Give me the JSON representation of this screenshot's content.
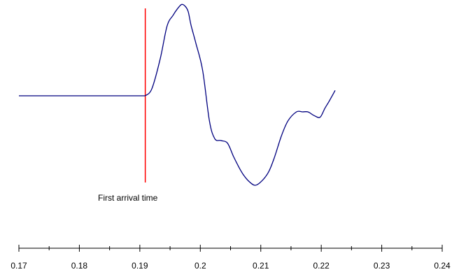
{
  "chart_data": {
    "type": "line",
    "title": "",
    "xlabel": "",
    "ylabel": "",
    "xlim": [
      0.17,
      0.24
    ],
    "x_ticks": [
      {
        "value": 0.17,
        "label": "0.17"
      },
      {
        "value": 0.18,
        "label": "0.18"
      },
      {
        "value": 0.19,
        "label": "0.19"
      },
      {
        "value": 0.2,
        "label": "0.2"
      },
      {
        "value": 0.21,
        "label": "0.21"
      },
      {
        "value": 0.22,
        "label": "0.22"
      },
      {
        "value": 0.23,
        "label": "0.23"
      },
      {
        "value": 0.24,
        "label": "0.24"
      }
    ],
    "x_minor_ticks": [
      0.175,
      0.185,
      0.195,
      0.205,
      0.215,
      0.225,
      0.235
    ],
    "y_axis_shown": false,
    "grid": false,
    "series": [
      {
        "color": "#00007f",
        "x": [
          0.17,
          0.1909,
          0.192,
          0.1934,
          0.1945,
          0.1955,
          0.1962,
          0.1969,
          0.1975,
          0.198,
          0.1985,
          0.1993,
          0.2004,
          0.2015,
          0.2024,
          0.2034,
          0.2045,
          0.2055,
          0.2064,
          0.2072,
          0.2081,
          0.2091,
          0.2102,
          0.2113,
          0.2122,
          0.2134,
          0.2145,
          0.2159,
          0.2169,
          0.2178,
          0.2188,
          0.2198,
          0.2206,
          0.2214,
          0.2223
        ],
        "y": [
          0.0,
          0.0,
          0.08,
          0.42,
          0.78,
          0.9,
          0.97,
          1.02,
          1.0,
          0.94,
          0.78,
          0.58,
          0.28,
          -0.28,
          -0.48,
          -0.5,
          -0.53,
          -0.68,
          -0.8,
          -0.89,
          -0.96,
          -1.0,
          -0.95,
          -0.85,
          -0.7,
          -0.45,
          -0.28,
          -0.18,
          -0.18,
          -0.18,
          -0.22,
          -0.24,
          -0.14,
          -0.05,
          0.06
        ]
      }
    ],
    "first_arrival": {
      "x": 0.1909,
      "color": "#ff0000",
      "label": "First arrival time"
    }
  }
}
